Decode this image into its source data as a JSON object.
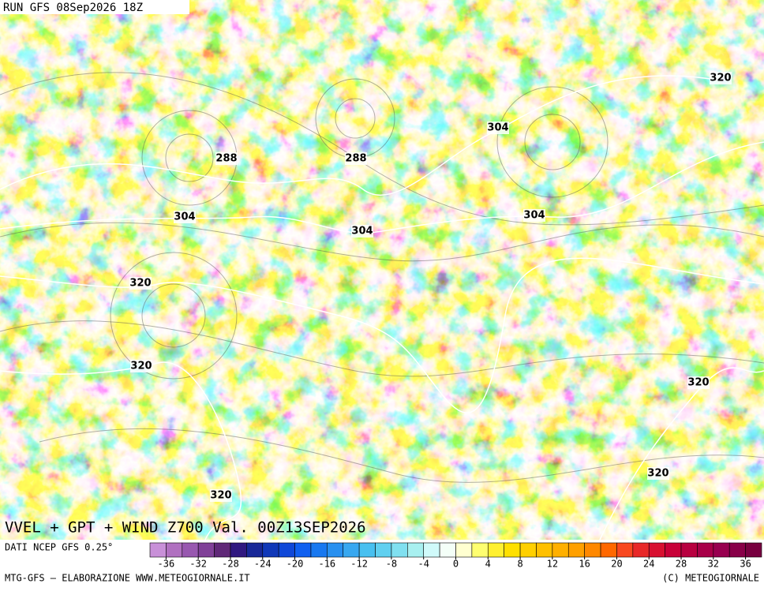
{
  "header": {
    "run": "RUN GFS 08Sep2026 18Z"
  },
  "title": "VVEL + GPT + WIND Z700 Val. 00Z13SEP2026",
  "contour_labels": [
    "288",
    "288",
    "304",
    "320",
    "304",
    "304",
    "304",
    "320",
    "320",
    "320",
    "320",
    "320"
  ],
  "source": "DATI NCEP GFS 0.25°",
  "colorbar": {
    "range": [
      -38,
      38
    ],
    "ticks": [
      -36,
      -32,
      -28,
      -24,
      -20,
      -16,
      -12,
      -8,
      -4,
      0,
      4,
      8,
      12,
      16,
      20,
      24,
      28,
      32,
      36
    ],
    "colors": [
      "#c890d8",
      "#b070c0",
      "#9858b0",
      "#804098",
      "#602878",
      "#301880",
      "#182898",
      "#1038b8",
      "#1048d8",
      "#1060f0",
      "#1878f0",
      "#2890f0",
      "#38a8f0",
      "#48c0f0",
      "#60d0f0",
      "#80e0f0",
      "#a8f0f0",
      "#d0fafa",
      "#f4fff8",
      "#ffffd0",
      "#ffff70",
      "#fff030",
      "#ffe000",
      "#ffd000",
      "#ffc000",
      "#ffb000",
      "#ffa000",
      "#ff8800",
      "#ff6800",
      "#f84820",
      "#e82828",
      "#d81030",
      "#c80038",
      "#b80040",
      "#a80048",
      "#980050",
      "#880048",
      "#780040"
    ]
  },
  "footer": {
    "left": "MTG-GFS – ELABORAZIONE WWW.METEOGIORNALE.IT",
    "right": "(C) METEOGIORNALE"
  }
}
